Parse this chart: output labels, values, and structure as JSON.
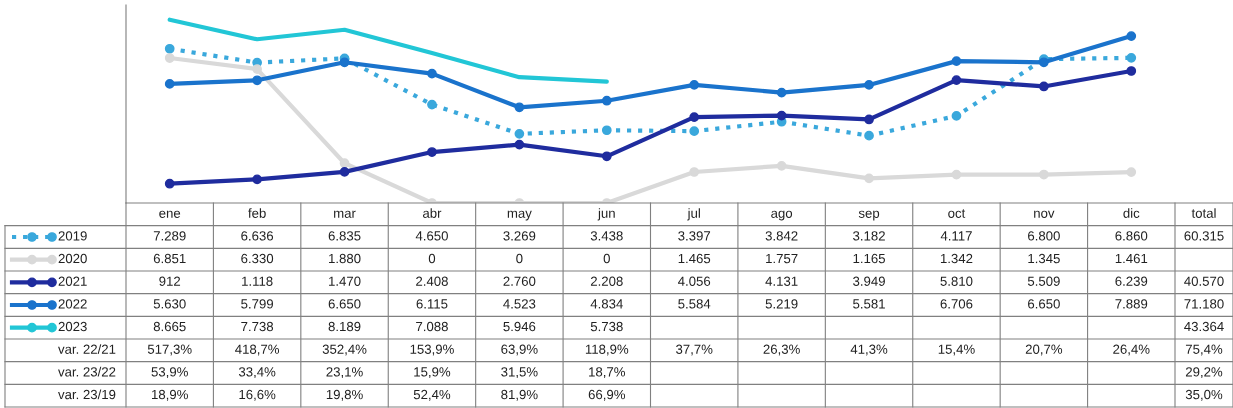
{
  "chart_data": {
    "type": "line",
    "categories": [
      "ene",
      "feb",
      "mar",
      "abr",
      "may",
      "jun",
      "jul",
      "ago",
      "sep",
      "oct",
      "nov",
      "dic"
    ],
    "series": [
      {
        "name": "2019",
        "color": "#3aa8dc",
        "line_style": "dotted",
        "marker": "circle",
        "values": [
          7289,
          6636,
          6835,
          4650,
          3269,
          3438,
          3397,
          3842,
          3182,
          4117,
          6800,
          6860
        ],
        "value_labels": [
          "7.289",
          "6.636",
          "6.835",
          "4.650",
          "3.269",
          "3.438",
          "3.397",
          "3.842",
          "3.182",
          "4.117",
          "6.800",
          "6.860"
        ]
      },
      {
        "name": "2020",
        "color": "#d9d9d9",
        "line_style": "solid",
        "marker": "circle",
        "values": [
          6851,
          6330,
          1880,
          0,
          0,
          0,
          1465,
          1757,
          1165,
          1342,
          1345,
          1461
        ],
        "value_labels": [
          "6.851",
          "6.330",
          "1.880",
          "0",
          "0",
          "0",
          "1.465",
          "1.757",
          "1.165",
          "1.342",
          "1.345",
          "1.461"
        ]
      },
      {
        "name": "2021",
        "color": "#1f2c9e",
        "line_style": "solid",
        "marker": "circle",
        "values": [
          912,
          1118,
          1470,
          2408,
          2760,
          2208,
          4056,
          4131,
          3949,
          5810,
          5509,
          6239
        ],
        "value_labels": [
          "912",
          "1.118",
          "1.470",
          "2.408",
          "2.760",
          "2.208",
          "4.056",
          "4.131",
          "3.949",
          "5.810",
          "5.509",
          "6.239"
        ]
      },
      {
        "name": "2022",
        "color": "#1a73cc",
        "line_style": "solid",
        "marker": "circle",
        "values": [
          5630,
          5799,
          6650,
          6115,
          4523,
          4834,
          5584,
          5219,
          5581,
          6706,
          6650,
          7889
        ],
        "value_labels": [
          "5.630",
          "5.799",
          "6.650",
          "6.115",
          "4.523",
          "4.834",
          "5.584",
          "5.219",
          "5.581",
          "6.706",
          "6.650",
          "7.889"
        ]
      },
      {
        "name": "2023",
        "color": "#22c6d6",
        "line_style": "solid",
        "marker": "none",
        "values": [
          8665,
          7738,
          8189,
          7088,
          5946,
          5738,
          null,
          null,
          null,
          null,
          null,
          null
        ],
        "value_labels": [
          "8.665",
          "7.738",
          "8.189",
          "7.088",
          "5.946",
          "5.738",
          null,
          null,
          null,
          null,
          null,
          null
        ]
      }
    ],
    "totals": [
      "60.315",
      null,
      "40.570",
      "71.180",
      "43.364"
    ],
    "legend": "bottom",
    "annotations": [
      "total",
      "var. 22/21",
      "517,3%",
      "418,7%",
      "352,4%",
      "153,9%",
      "63,9%",
      "118,9%",
      "37,7%",
      "26,3%",
      "41,3%",
      "15,4%",
      "20,7%",
      "26,4%",
      "75,4%",
      "var. 23/22",
      "53,9%",
      "33,4%",
      "23,1%",
      "15,9%",
      "31,5%",
      "18,7%",
      null,
      null,
      null,
      null,
      null,
      null,
      "29,2%",
      "var. 23/19",
      "18,9%",
      "16,6%",
      "19,8%",
      "52,4%",
      "81,9%",
      "66,9%",
      null,
      null,
      null,
      null,
      null,
      null,
      "35,0%"
    ]
  }
}
